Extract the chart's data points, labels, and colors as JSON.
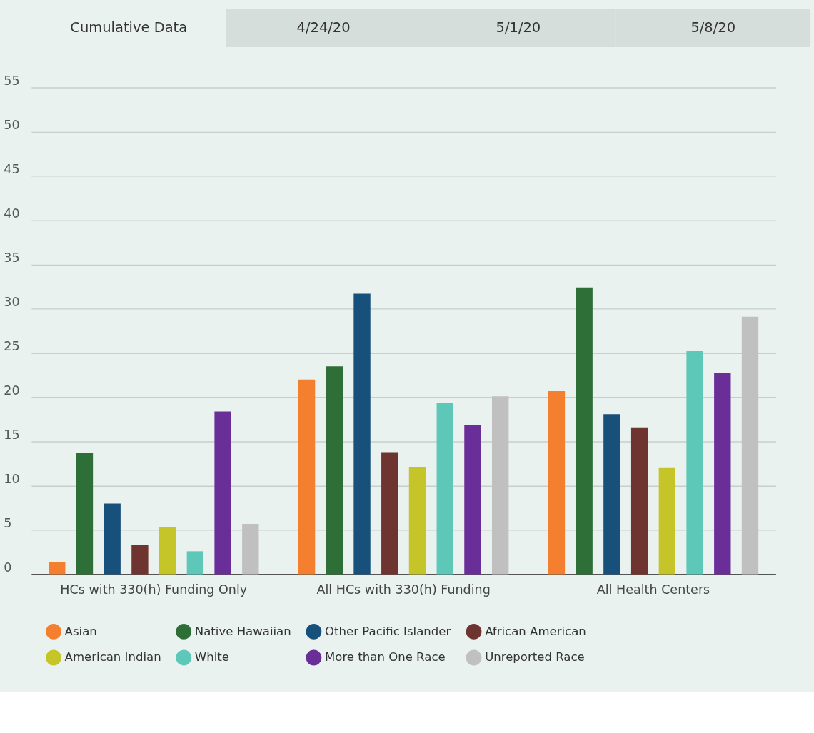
{
  "chart_data": {
    "type": "bar",
    "annotations": [
      "Cumulative Data",
      "4/24/20",
      "5/1/20",
      "5/8/20"
    ],
    "categories": [
      "HCs with 330(h) Funding Only",
      "All HCs with 330(h) Funding",
      "All Health Centers"
    ],
    "series": [
      {
        "name": "Asian",
        "color": "#f47f2f",
        "values": [
          1.4,
          22.0,
          20.7
        ]
      },
      {
        "name": "Native Hawaiian",
        "color": "#2e6f37",
        "values": [
          13.7,
          23.5,
          32.4
        ]
      },
      {
        "name": "Other Pacific Islander",
        "color": "#17507b",
        "values": [
          8.0,
          31.7,
          18.1
        ]
      },
      {
        "name": "African American",
        "color": "#6e3530",
        "values": [
          3.3,
          13.8,
          16.6
        ]
      },
      {
        "name": "American Indian",
        "color": "#c5c52a",
        "values": [
          5.3,
          12.1,
          12.0
        ]
      },
      {
        "name": "White",
        "color": "#5ec8b8",
        "values": [
          2.6,
          19.4,
          25.2
        ]
      },
      {
        "name": "More than One Race",
        "color": "#6a2e98",
        "values": [
          18.4,
          16.9,
          22.7
        ]
      },
      {
        "name": "Unreported Race",
        "color": "#c0c0c0",
        "values": [
          5.7,
          20.1,
          29.1
        ]
      }
    ],
    "ylim": [
      0,
      55
    ],
    "yticks": [
      0,
      5,
      10,
      15,
      20,
      25,
      30,
      35,
      40,
      45,
      50,
      55
    ],
    "grid": "y",
    "legend": "bottom"
  }
}
